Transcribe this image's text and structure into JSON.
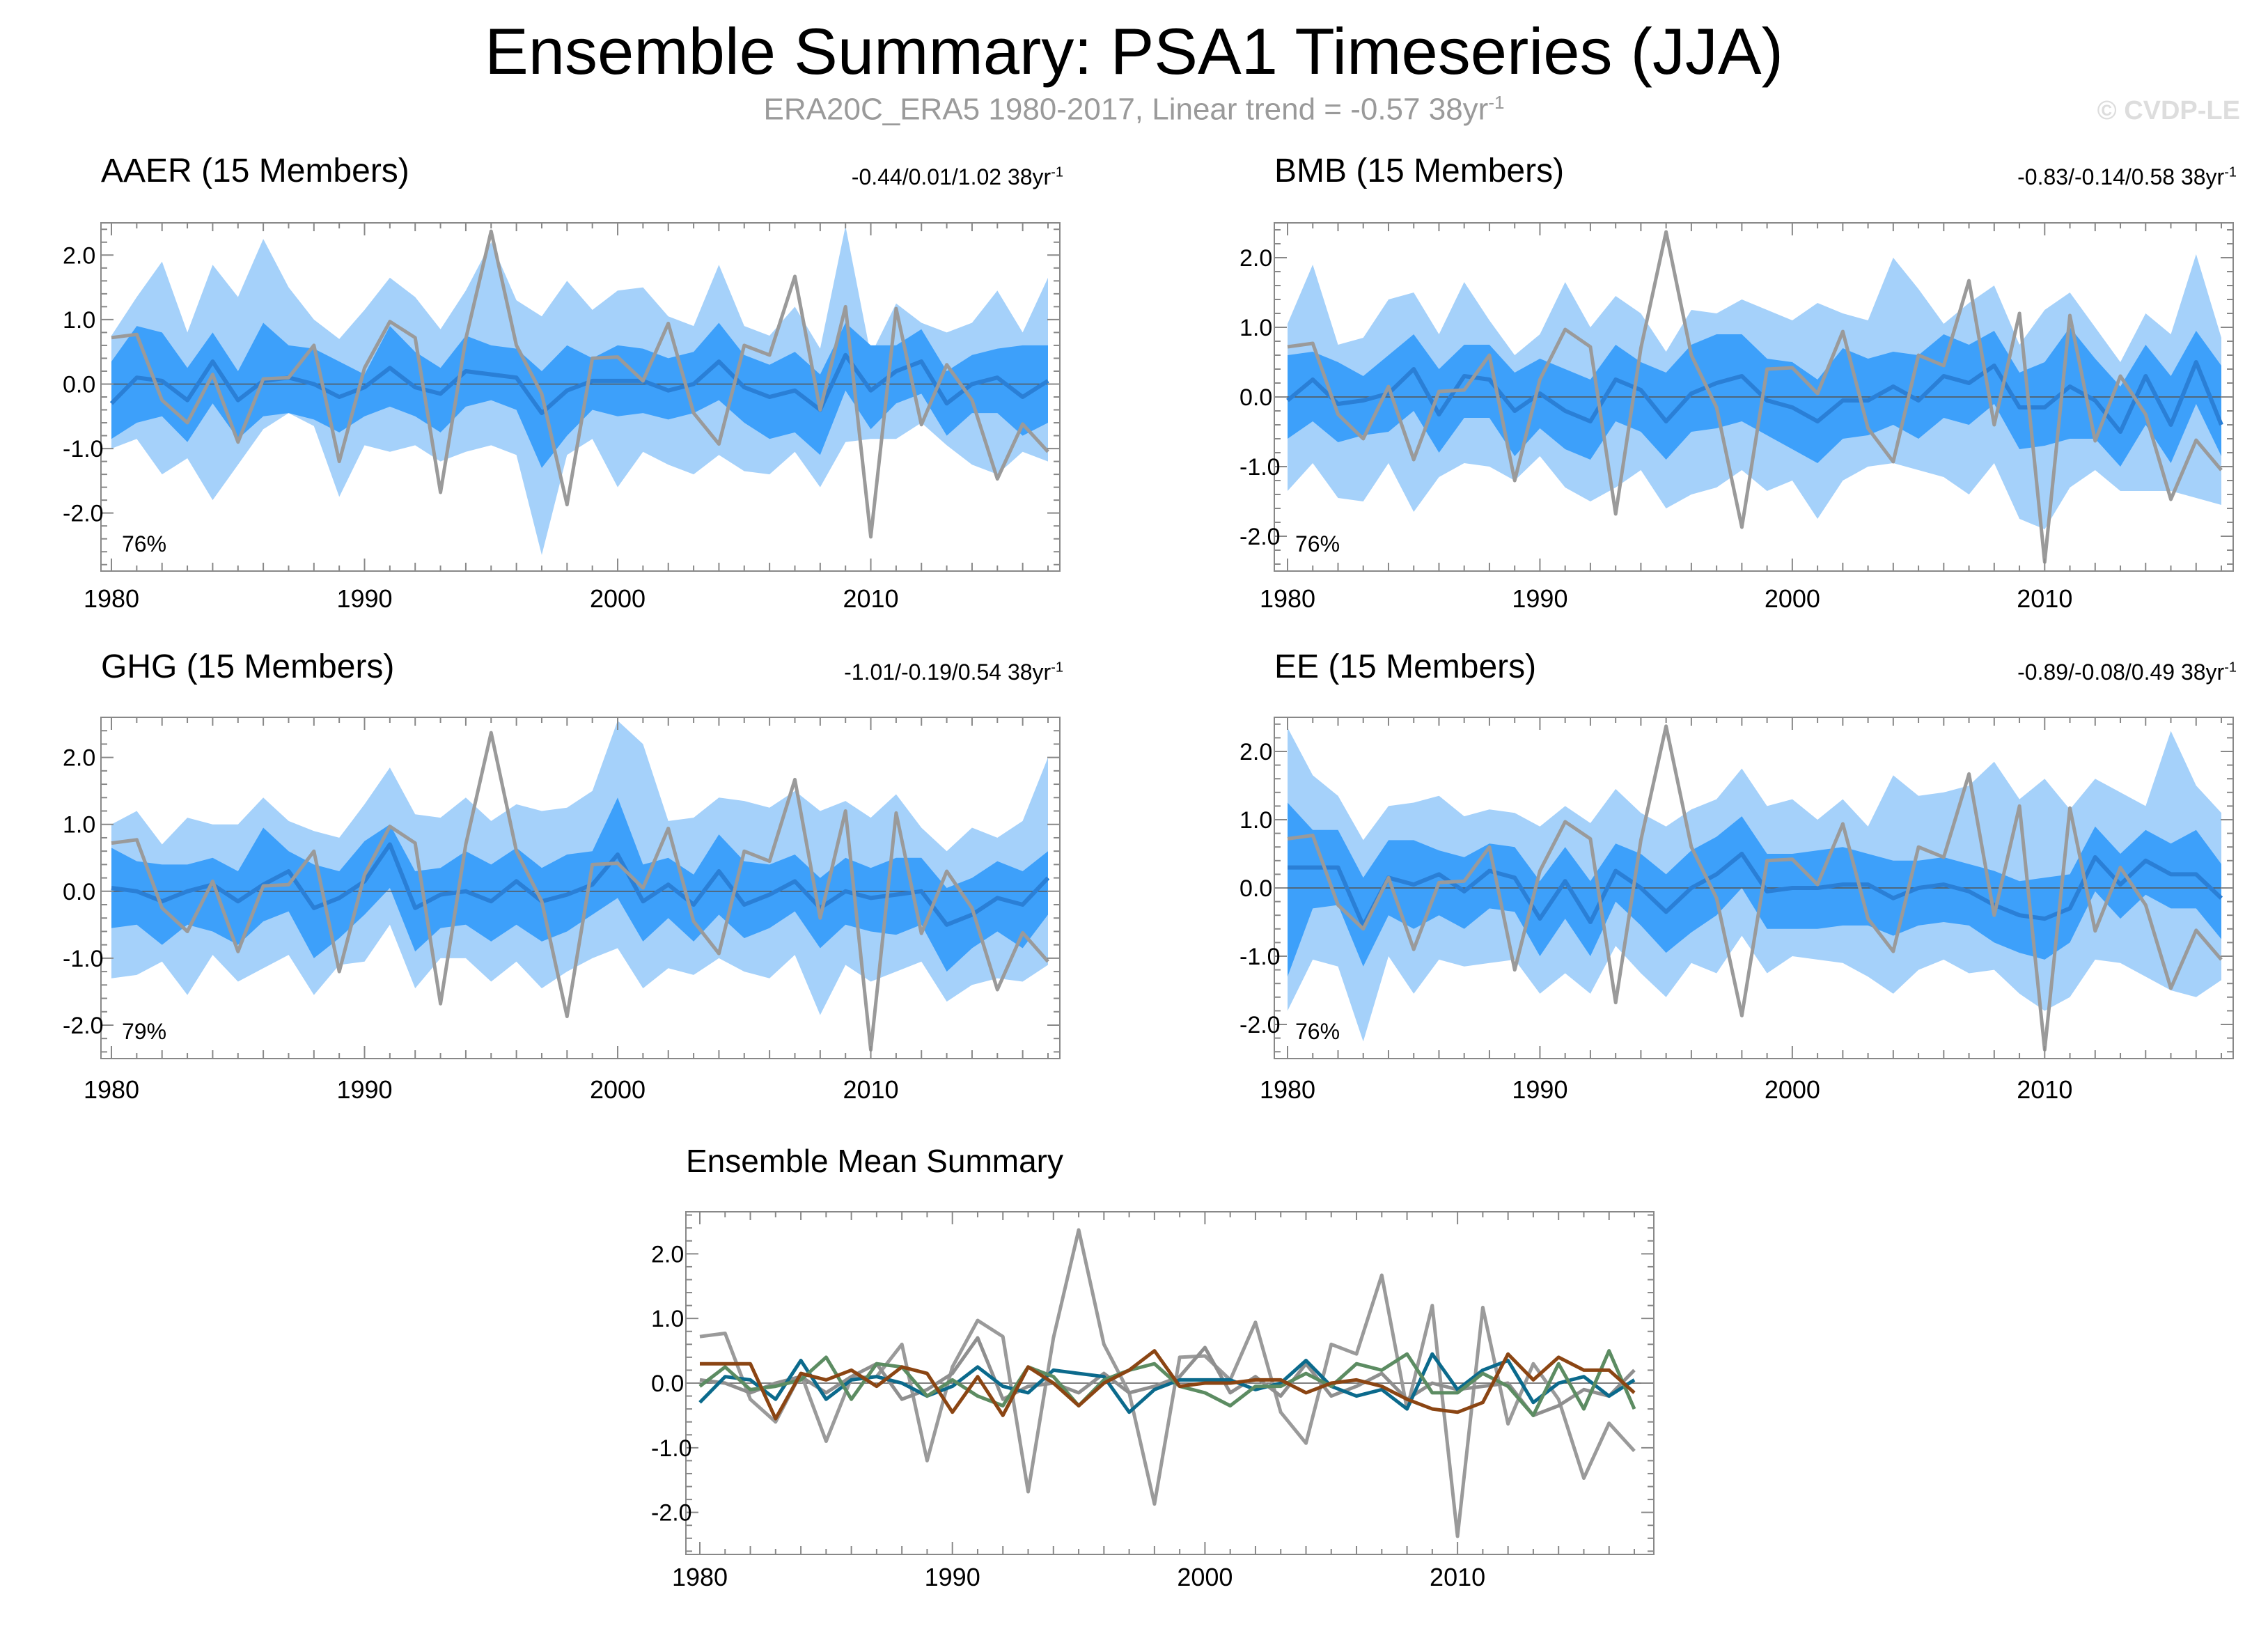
{
  "title": "Ensemble Summary: PSA1 Timeseries (JJA)",
  "subtitle": {
    "text": "ERA20C_ERA5 1980-2017, Linear trend = -0.57 38yr",
    "superscript": "-1"
  },
  "credit": "© CVDP-LE",
  "colors": {
    "outer_band": "#a5d1fa",
    "inner_band": "#3da0fa",
    "ensemble_mean": "#2a7fd6",
    "observations": "#9a9a9a",
    "AAER": "#0b6a8c",
    "BMB": "#5c8c62",
    "GHG": "#8f8f8f",
    "EE": "#8b4513"
  },
  "chart_data": [
    {
      "type": "line",
      "label": "AAER (15 Members)",
      "label_color": "#0b6a8c",
      "trend_text": "-0.44/0.01/1.02 38yr",
      "trend_sup": "-1",
      "percent": "76%",
      "xlim": [
        1980,
        2017
      ],
      "ylim": [
        -2.9,
        2.5
      ],
      "yticks": [
        "2.0",
        "1.0",
        "0.0",
        "-1.0",
        "-2.0"
      ],
      "xticks": [
        "1980",
        "1990",
        "2000",
        "2010"
      ],
      "mean": [
        -0.3,
        0.1,
        0.05,
        -0.25,
        0.35,
        -0.25,
        0.05,
        0.1,
        0.0,
        -0.2,
        -0.05,
        0.25,
        -0.05,
        -0.15,
        0.2,
        0.15,
        0.1,
        -0.45,
        -0.1,
        0.05,
        0.05,
        0.05,
        -0.1,
        0.0,
        0.35,
        -0.05,
        -0.2,
        -0.1,
        -0.4,
        0.45,
        -0.1,
        0.2,
        0.35,
        -0.3,
        0.0,
        0.1,
        -0.2,
        0.05
      ],
      "inner_upper": [
        0.35,
        0.9,
        0.8,
        0.25,
        0.8,
        0.2,
        0.95,
        0.6,
        0.55,
        0.35,
        0.15,
        0.9,
        0.5,
        0.25,
        0.75,
        0.6,
        0.55,
        0.2,
        0.6,
        0.4,
        0.6,
        0.55,
        0.4,
        0.5,
        0.95,
        0.45,
        0.3,
        0.5,
        0.15,
        0.95,
        0.6,
        0.6,
        0.85,
        0.2,
        0.45,
        0.55,
        0.6,
        0.6
      ],
      "inner_lower": [
        -0.85,
        -0.6,
        -0.5,
        -0.9,
        -0.3,
        -0.85,
        -0.5,
        -0.45,
        -0.55,
        -0.75,
        -0.5,
        -0.35,
        -0.5,
        -0.75,
        -0.35,
        -0.25,
        -0.4,
        -1.3,
        -0.8,
        -0.4,
        -0.5,
        -0.45,
        -0.55,
        -0.45,
        -0.25,
        -0.6,
        -0.85,
        -0.75,
        -1.1,
        -0.1,
        -0.7,
        -0.3,
        -0.15,
        -0.8,
        -0.45,
        -0.45,
        -0.8,
        -0.6
      ],
      "outer_upper": [
        0.75,
        1.35,
        1.9,
        0.8,
        1.85,
        1.35,
        2.25,
        1.5,
        1.0,
        0.7,
        1.15,
        1.65,
        1.35,
        0.85,
        1.45,
        2.2,
        1.3,
        1.05,
        1.6,
        1.15,
        1.45,
        1.5,
        1.05,
        0.9,
        1.85,
        0.9,
        0.75,
        1.2,
        0.55,
        2.45,
        0.45,
        1.25,
        0.95,
        0.8,
        0.95,
        1.45,
        0.8,
        1.65
      ],
      "outer_lower": [
        -1.0,
        -0.85,
        -1.4,
        -1.15,
        -1.8,
        -1.25,
        -0.7,
        -0.45,
        -0.65,
        -1.75,
        -0.95,
        -1.05,
        -0.95,
        -1.2,
        -1.05,
        -0.95,
        -1.1,
        -2.65,
        -1.1,
        -0.85,
        -1.6,
        -1.05,
        -1.25,
        -1.4,
        -1.1,
        -1.35,
        -1.4,
        -1.05,
        -1.6,
        -0.9,
        -0.85,
        -0.85,
        -0.6,
        -0.95,
        -1.25,
        -1.4,
        -1.05,
        -1.2
      ]
    },
    {
      "type": "line",
      "label": "BMB (15 Members)",
      "label_color": "#5c8c62",
      "trend_text": "-0.83/-0.14/0.58 38yr",
      "trend_sup": "-1",
      "percent": "76%",
      "xlim": [
        1980,
        2017
      ],
      "ylim": [
        -2.5,
        2.5
      ],
      "yticks": [
        "2.0",
        "1.0",
        "0.0",
        "-1.0",
        "-2.0"
      ],
      "xticks": [
        "1980",
        "1990",
        "2000",
        "2010"
      ],
      "mean": [
        -0.05,
        0.25,
        -0.1,
        -0.05,
        0.05,
        0.4,
        -0.25,
        0.3,
        0.25,
        -0.2,
        0.05,
        -0.2,
        -0.35,
        0.25,
        0.1,
        -0.35,
        0.05,
        0.2,
        0.3,
        -0.05,
        -0.15,
        -0.35,
        -0.05,
        -0.05,
        0.15,
        -0.05,
        0.3,
        0.2,
        0.45,
        -0.15,
        -0.15,
        0.15,
        -0.05,
        -0.5,
        0.3,
        -0.4,
        0.5,
        -0.4
      ],
      "inner_upper": [
        0.6,
        0.65,
        0.5,
        0.3,
        0.6,
        0.9,
        0.4,
        0.75,
        0.75,
        0.35,
        0.55,
        0.4,
        0.25,
        0.75,
        0.5,
        0.35,
        0.75,
        0.9,
        0.9,
        0.55,
        0.5,
        0.25,
        0.7,
        0.55,
        0.65,
        0.6,
        0.9,
        0.75,
        0.95,
        0.35,
        0.5,
        1.0,
        0.55,
        0.15,
        0.75,
        0.3,
        0.95,
        0.45
      ],
      "inner_lower": [
        -0.6,
        -0.35,
        -0.65,
        -0.55,
        -0.5,
        -0.2,
        -0.8,
        -0.3,
        -0.3,
        -0.85,
        -0.45,
        -0.75,
        -0.9,
        -0.35,
        -0.5,
        -0.9,
        -0.5,
        -0.45,
        -0.35,
        -0.55,
        -0.75,
        -0.95,
        -0.6,
        -0.55,
        -0.4,
        -0.6,
        -0.3,
        -0.4,
        -0.1,
        -0.75,
        -0.7,
        -0.6,
        -0.6,
        -1.0,
        -0.4,
        -0.95,
        -0.1,
        -0.85
      ],
      "outer_upper": [
        1.05,
        1.9,
        0.75,
        0.85,
        1.4,
        1.5,
        0.9,
        1.65,
        1.1,
        0.6,
        0.9,
        1.65,
        1.0,
        1.45,
        1.2,
        0.65,
        1.25,
        1.2,
        1.4,
        1.25,
        1.1,
        1.35,
        1.2,
        1.1,
        2.0,
        1.55,
        1.05,
        1.35,
        1.6,
        0.75,
        1.25,
        1.5,
        1.0,
        0.5,
        1.2,
        0.9,
        2.05,
        0.85
      ],
      "outer_lower": [
        -1.35,
        -0.95,
        -1.45,
        -1.5,
        -0.95,
        -1.65,
        -1.15,
        -0.95,
        -1.0,
        -1.2,
        -0.85,
        -1.3,
        -1.5,
        -1.3,
        -1.05,
        -1.6,
        -1.4,
        -1.3,
        -1.05,
        -1.35,
        -1.2,
        -1.75,
        -1.2,
        -1.0,
        -0.95,
        -1.05,
        -1.15,
        -1.4,
        -0.95,
        -1.75,
        -1.9,
        -1.3,
        -1.05,
        -1.35,
        -1.35,
        -1.35,
        -1.45,
        -1.55
      ]
    },
    {
      "type": "line",
      "label": "GHG (15 Members)",
      "label_color": "#8f8f8f",
      "trend_text": "-1.01/-0.19/0.54 38yr",
      "trend_sup": "-1",
      "percent": "79%",
      "xlim": [
        1980,
        2017
      ],
      "ylim": [
        -2.5,
        2.6
      ],
      "yticks": [
        "2.0",
        "1.0",
        "0.0",
        "-1.0",
        "-2.0"
      ],
      "xticks": [
        "1980",
        "1990",
        "2000",
        "2010"
      ],
      "mean": [
        0.05,
        0.0,
        -0.15,
        0.0,
        0.1,
        -0.15,
        0.1,
        0.3,
        -0.25,
        -0.1,
        0.15,
        0.7,
        -0.25,
        -0.05,
        0.0,
        -0.15,
        0.15,
        -0.15,
        -0.05,
        0.1,
        0.55,
        -0.15,
        0.1,
        -0.2,
        0.3,
        -0.2,
        -0.05,
        0.15,
        -0.25,
        0.0,
        -0.1,
        -0.05,
        0.0,
        -0.5,
        -0.35,
        -0.1,
        -0.2,
        0.2
      ],
      "inner_upper": [
        0.65,
        0.45,
        0.4,
        0.4,
        0.5,
        0.3,
        0.95,
        0.6,
        0.4,
        0.3,
        0.75,
        1.0,
        0.3,
        0.35,
        0.6,
        0.4,
        0.65,
        0.35,
        0.55,
        0.6,
        1.4,
        0.4,
        0.5,
        0.25,
        0.85,
        0.45,
        0.4,
        0.55,
        0.2,
        0.5,
        0.35,
        0.5,
        0.5,
        0.05,
        0.2,
        0.45,
        0.3,
        0.6
      ],
      "inner_lower": [
        -0.55,
        -0.5,
        -0.8,
        -0.5,
        -0.6,
        -0.8,
        -0.45,
        -0.3,
        -1.0,
        -0.7,
        -0.35,
        0.05,
        -0.9,
        -0.55,
        -0.5,
        -0.75,
        -0.5,
        -0.75,
        -0.6,
        -0.35,
        -0.1,
        -0.75,
        -0.4,
        -0.75,
        -0.35,
        -0.7,
        -0.55,
        -0.3,
        -0.85,
        -0.5,
        -0.6,
        -0.65,
        -0.5,
        -1.2,
        -0.85,
        -0.6,
        -0.85,
        -0.35
      ],
      "outer_upper": [
        1.0,
        1.2,
        0.7,
        1.1,
        1.0,
        1.0,
        1.4,
        1.05,
        0.9,
        0.8,
        1.3,
        1.85,
        1.15,
        1.1,
        1.4,
        1.05,
        1.3,
        1.2,
        1.25,
        1.5,
        2.55,
        2.2,
        1.05,
        1.1,
        1.4,
        1.35,
        1.25,
        1.5,
        1.2,
        1.35,
        1.1,
        1.45,
        0.95,
        0.6,
        0.95,
        0.8,
        1.05,
        2.0
      ],
      "outer_lower": [
        -1.3,
        -1.25,
        -1.05,
        -1.55,
        -0.95,
        -1.35,
        -1.15,
        -0.95,
        -1.55,
        -1.1,
        -1.05,
        -0.5,
        -1.45,
        -1.0,
        -1.0,
        -1.35,
        -1.05,
        -1.45,
        -1.2,
        -1.0,
        -0.85,
        -1.45,
        -1.15,
        -1.25,
        -1.0,
        -1.2,
        -1.3,
        -0.95,
        -1.85,
        -1.1,
        -1.35,
        -1.2,
        -1.05,
        -1.65,
        -1.4,
        -1.3,
        -1.35,
        -1.1
      ]
    },
    {
      "type": "line",
      "label": "EE (15 Members)",
      "label_color": "#8b4513",
      "trend_text": "-0.89/-0.08/0.49 38yr",
      "trend_sup": "-1",
      "percent": "76%",
      "xlim": [
        1980,
        2017
      ],
      "ylim": [
        -2.5,
        2.5
      ],
      "yticks": [
        "2.0",
        "1.0",
        "0.0",
        "-1.0",
        "-2.0"
      ],
      "xticks": [
        "1980",
        "1990",
        "2000",
        "2010"
      ],
      "mean": [
        0.3,
        0.3,
        0.3,
        -0.55,
        0.15,
        0.05,
        0.2,
        -0.05,
        0.25,
        0.15,
        -0.45,
        0.1,
        -0.5,
        0.25,
        0.0,
        -0.35,
        0.0,
        0.2,
        0.5,
        -0.05,
        0.0,
        0.0,
        0.05,
        0.05,
        -0.15,
        0.0,
        0.05,
        -0.05,
        -0.25,
        -0.4,
        -0.45,
        -0.3,
        0.45,
        0.05,
        0.4,
        0.2,
        0.2,
        -0.15
      ],
      "inner_upper": [
        1.25,
        0.85,
        0.85,
        0.15,
        0.7,
        0.7,
        0.55,
        0.45,
        0.65,
        0.6,
        0.1,
        0.6,
        0.1,
        0.65,
        0.5,
        0.2,
        0.55,
        0.75,
        1.05,
        0.5,
        0.5,
        0.55,
        0.6,
        0.5,
        0.4,
        0.4,
        0.45,
        0.35,
        0.25,
        0.1,
        0.15,
        0.2,
        0.9,
        0.5,
        0.85,
        0.65,
        0.85,
        0.35
      ],
      "inner_lower": [
        -1.3,
        -0.3,
        -0.25,
        -1.15,
        -0.4,
        -0.6,
        -0.4,
        -0.6,
        -0.3,
        -0.35,
        -1.0,
        -0.45,
        -1.0,
        -0.2,
        -0.55,
        -0.95,
        -0.65,
        -0.4,
        0.0,
        -0.6,
        -0.6,
        -0.6,
        -0.55,
        -0.55,
        -0.7,
        -0.55,
        -0.5,
        -0.55,
        -0.8,
        -0.95,
        -1.05,
        -0.8,
        -0.05,
        -0.45,
        -0.1,
        -0.3,
        -0.3,
        -0.75
      ],
      "outer_upper": [
        2.35,
        1.65,
        1.35,
        0.7,
        1.2,
        1.25,
        1.35,
        1.05,
        1.15,
        1.1,
        0.9,
        1.2,
        0.95,
        1.45,
        1.1,
        0.9,
        1.15,
        1.3,
        1.75,
        1.2,
        1.3,
        1.0,
        1.3,
        0.9,
        1.65,
        1.35,
        1.4,
        1.5,
        1.85,
        1.3,
        1.6,
        1.15,
        1.6,
        1.4,
        1.2,
        2.3,
        1.5,
        1.1
      ],
      "outer_lower": [
        -1.8,
        -1.05,
        -1.15,
        -2.25,
        -1.0,
        -1.55,
        -1.05,
        -1.15,
        -1.1,
        -1.05,
        -1.55,
        -1.25,
        -1.55,
        -0.85,
        -1.25,
        -1.6,
        -1.1,
        -1.25,
        -0.7,
        -1.25,
        -1.0,
        -1.05,
        -1.1,
        -1.3,
        -1.55,
        -1.2,
        -1.05,
        -1.25,
        -1.2,
        -1.55,
        -1.8,
        -1.6,
        -1.05,
        -1.1,
        -1.3,
        -1.5,
        -1.6,
        -1.35
      ]
    },
    {
      "type": "line",
      "label": "Ensemble Mean Summary",
      "xlim": [
        1980,
        2017
      ],
      "ylim": [
        -2.65,
        2.65
      ],
      "yticks": [
        "2.0",
        "1.0",
        "0.0",
        "-1.0",
        "-2.0"
      ],
      "xticks": [
        "1980",
        "1990",
        "2000",
        "2010"
      ],
      "series_names": [
        "GHG",
        "AAER",
        "BMB",
        "EE"
      ]
    }
  ],
  "observations": {
    "name": "ERA20C_ERA5",
    "x": [
      1980,
      1981,
      1982,
      1983,
      1984,
      1985,
      1986,
      1987,
      1988,
      1989,
      1990,
      1991,
      1992,
      1993,
      1994,
      1995,
      1996,
      1997,
      1998,
      1999,
      2000,
      2001,
      2002,
      2003,
      2004,
      2005,
      2006,
      2007,
      2008,
      2009,
      2010,
      2011,
      2012,
      2013,
      2014,
      2015,
      2016,
      2017
    ],
    "values": [
      0.72,
      0.77,
      -0.25,
      -0.6,
      0.15,
      -0.9,
      0.08,
      0.1,
      0.6,
      -1.2,
      0.25,
      0.97,
      0.72,
      -1.68,
      0.7,
      2.37,
      0.6,
      -0.15,
      -1.87,
      0.4,
      0.42,
      0.05,
      0.94,
      -0.45,
      -0.93,
      0.6,
      0.45,
      1.67,
      -0.4,
      1.2,
      -2.37,
      1.17,
      -0.63,
      0.3,
      -0.25,
      -1.47,
      -0.62,
      -1.05
    ]
  }
}
